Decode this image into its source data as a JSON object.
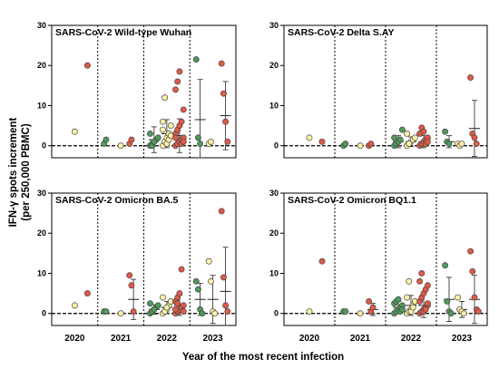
{
  "chart_data": {
    "type": "scatter",
    "ylabel_line1": "IFN-γ spots increment",
    "ylabel_line2": "(per 250,000 PBMC)",
    "xlabel": "Year of the most recent infection",
    "categories": [
      "2020",
      "2021",
      "2022",
      "2023"
    ],
    "ylim": [
      -3,
      30
    ],
    "yticks": [
      0,
      10,
      20,
      30
    ],
    "colors": {
      "green": "#4e9a5a",
      "yellow": "#fbf2a6",
      "red": "#e05a47"
    },
    "panels": [
      {
        "title": "SARS-CoV-2  Wild-type Wuhan",
        "groups": [
          {
            "year": "2020",
            "subgroups": [
              {
                "color": "yellow",
                "values": [
                  3.5
                ],
                "mean": null,
                "sd": null
              },
              {
                "color": "red",
                "values": [
                  20
                ],
                "mean": null,
                "sd": null
              }
            ]
          },
          {
            "year": "2021",
            "subgroups": [
              {
                "color": "green",
                "values": [
                  0.5,
                  1.5
                ],
                "mean": null,
                "sd": null
              },
              {
                "color": "yellow",
                "values": [
                  0
                ],
                "mean": null,
                "sd": null
              },
              {
                "color": "red",
                "values": [
                  0.5,
                  1.5
                ],
                "mean": null,
                "sd": null
              }
            ]
          },
          {
            "year": "2022",
            "subgroups": [
              {
                "color": "green",
                "values": [
                  0,
                  0.5,
                  1,
                  1.5,
                  2,
                  3,
                  0,
                  1
                ],
                "mean": 1.5,
                "sd": 3.2
              },
              {
                "color": "yellow",
                "values": [
                  0,
                  1,
                  2,
                  3,
                  5,
                  6,
                  12,
                  0.5,
                  1.5,
                  2.5,
                  4
                ],
                "mean": 3,
                "sd": 3.5
              },
              {
                "color": "red",
                "values": [
                  0,
                  0.5,
                  1,
                  1.5,
                  2,
                  3,
                  4,
                  5,
                  6,
                  9,
                  14,
                  16,
                  18.5,
                  0.5,
                  1,
                  2
                ],
                "mean": 2.5,
                "sd": 4.2
              }
            ]
          },
          {
            "year": "2023",
            "subgroups": [
              {
                "color": "green",
                "values": [
                  21.5,
                  2,
                  0.5
                ],
                "mean": 6.5,
                "sd": 10
              },
              {
                "color": "yellow",
                "values": [
                  0.5,
                  1
                ],
                "mean": null,
                "sd": null
              },
              {
                "color": "red",
                "values": [
                  20.5,
                  13,
                  6,
                  1
                ],
                "mean": 7.5,
                "sd": 8.5
              }
            ]
          }
        ]
      },
      {
        "title": "SARS-CoV-2  Delta S.AY",
        "groups": [
          {
            "year": "2020",
            "subgroups": [
              {
                "color": "yellow",
                "values": [
                  2
                ],
                "mean": null,
                "sd": null
              },
              {
                "color": "red",
                "values": [
                  1
                ],
                "mean": null,
                "sd": null
              }
            ]
          },
          {
            "year": "2021",
            "subgroups": [
              {
                "color": "green",
                "values": [
                  0,
                  0.5
                ],
                "mean": null,
                "sd": null
              },
              {
                "color": "yellow",
                "values": [
                  0
                ],
                "mean": null,
                "sd": null
              },
              {
                "color": "red",
                "values": [
                  0,
                  0.5
                ],
                "mean": null,
                "sd": null
              }
            ]
          },
          {
            "year": "2022",
            "subgroups": [
              {
                "color": "green",
                "values": [
                  0,
                  0.5,
                  1,
                  1.5,
                  4,
                  2
                ],
                "mean": 1,
                "sd": 1.5
              },
              {
                "color": "yellow",
                "values": [
                  0,
                  0.5,
                  1,
                  1.5,
                  2,
                  3,
                  0.5
                ],
                "mean": 1,
                "sd": 1.2
              },
              {
                "color": "red",
                "values": [
                  0,
                  0.5,
                  1,
                  1.5,
                  2,
                  3,
                  4.5,
                  3.5,
                  0.5,
                  1
                ],
                "mean": 1,
                "sd": 1.5
              }
            ]
          },
          {
            "year": "2023",
            "subgroups": [
              {
                "color": "green",
                "values": [
                  3.5,
                  1,
                  0.5
                ],
                "mean": 1,
                "sd": 1.5
              },
              {
                "color": "yellow",
                "values": [
                  0.5,
                  0,
                  0.5
                ],
                "mean": null,
                "sd": null
              },
              {
                "color": "red",
                "values": [
                  17,
                  3,
                  2,
                  0.5
                ],
                "mean": 4.3,
                "sd": 7
              }
            ]
          }
        ]
      },
      {
        "title": "SARS-CoV-2  Omicron BA.5",
        "groups": [
          {
            "year": "2020",
            "subgroups": [
              {
                "color": "yellow",
                "values": [
                  2
                ],
                "mean": null,
                "sd": null
              },
              {
                "color": "red",
                "values": [
                  5
                ],
                "mean": null,
                "sd": null
              }
            ]
          },
          {
            "year": "2021",
            "subgroups": [
              {
                "color": "green",
                "values": [
                  0.5,
                  0.5
                ],
                "mean": null,
                "sd": null
              },
              {
                "color": "yellow",
                "values": [
                  0
                ],
                "mean": null,
                "sd": null
              },
              {
                "color": "red",
                "values": [
                  9.5,
                  7,
                  0.5
                ],
                "mean": 3.5,
                "sd": 5
              }
            ]
          },
          {
            "year": "2022",
            "subgroups": [
              {
                "color": "green",
                "values": [
                  0,
                  0.5,
                  1,
                  1.5,
                  2,
                  2.5,
                  0.5,
                  1
                ],
                "mean": 1,
                "sd": 1.2
              },
              {
                "color": "yellow",
                "values": [
                  0,
                  0.5,
                  1,
                  2,
                  3,
                  4,
                  0.5,
                  1.5
                ],
                "mean": 1.5,
                "sd": 1.5
              },
              {
                "color": "red",
                "values": [
                  0,
                  0.5,
                  1,
                  1.5,
                  2,
                  3,
                  4,
                  5,
                  11,
                  0.5,
                  1,
                  2.5
                ],
                "mean": 2,
                "sd": 2.5
              }
            ]
          },
          {
            "year": "2023",
            "subgroups": [
              {
                "color": "green",
                "values": [
                  8,
                  6,
                  1,
                  0
                ],
                "mean": 3.5,
                "sd": 4
              },
              {
                "color": "yellow",
                "values": [
                  13,
                  8,
                  0.5,
                  0
                ],
                "mean": 3.5,
                "sd": 6
              },
              {
                "color": "red",
                "values": [
                  25.5,
                  9,
                  2,
                  0.5
                ],
                "mean": 5.5,
                "sd": 11
              }
            ]
          }
        ]
      },
      {
        "title": "SARS-CoV-2  Omicron BQ1.1",
        "groups": [
          {
            "year": "2020",
            "subgroups": [
              {
                "color": "yellow",
                "values": [
                  0.5
                ],
                "mean": null,
                "sd": null
              },
              {
                "color": "red",
                "values": [
                  13
                ],
                "mean": null,
                "sd": null
              }
            ]
          },
          {
            "year": "2021",
            "subgroups": [
              {
                "color": "green",
                "values": [
                  0.5,
                  0.5
                ],
                "mean": null,
                "sd": null
              },
              {
                "color": "yellow",
                "values": [
                  0
                ],
                "mean": null,
                "sd": null
              },
              {
                "color": "red",
                "values": [
                  3,
                  0.5,
                  1.5
                ],
                "mean": 1,
                "sd": 1.5
              }
            ]
          },
          {
            "year": "2022",
            "subgroups": [
              {
                "color": "green",
                "values": [
                  0,
                  0.5,
                  1,
                  1.5,
                  2,
                  2.5,
                  3,
                  3.5,
                  0.5,
                  1
                ],
                "mean": 1.5,
                "sd": 1.5
              },
              {
                "color": "yellow",
                "values": [
                  0,
                  0.5,
                  1,
                  2,
                  3,
                  4,
                  8,
                  0.5,
                  1.5
                ],
                "mean": 2,
                "sd": 2.5
              },
              {
                "color": "red",
                "values": [
                  0,
                  0.5,
                  1,
                  1.5,
                  2,
                  3,
                  4,
                  5,
                  6,
                  7,
                  8,
                  10,
                  0.5,
                  1,
                  2.5
                ],
                "mean": 2,
                "sd": 3
              }
            ]
          },
          {
            "year": "2023",
            "subgroups": [
              {
                "color": "green",
                "values": [
                  12,
                  3,
                  0.5,
                  0
                ],
                "mean": 3.5,
                "sd": 5.5
              },
              {
                "color": "yellow",
                "values": [
                  4,
                  1,
                  0.5,
                  0
                ],
                "mean": 1,
                "sd": 2
              },
              {
                "color": "red",
                "values": [
                  15.5,
                  10.5,
                  4,
                  1,
                  0.5
                ],
                "mean": 3.5,
                "sd": 6
              }
            ]
          }
        ]
      }
    ]
  }
}
